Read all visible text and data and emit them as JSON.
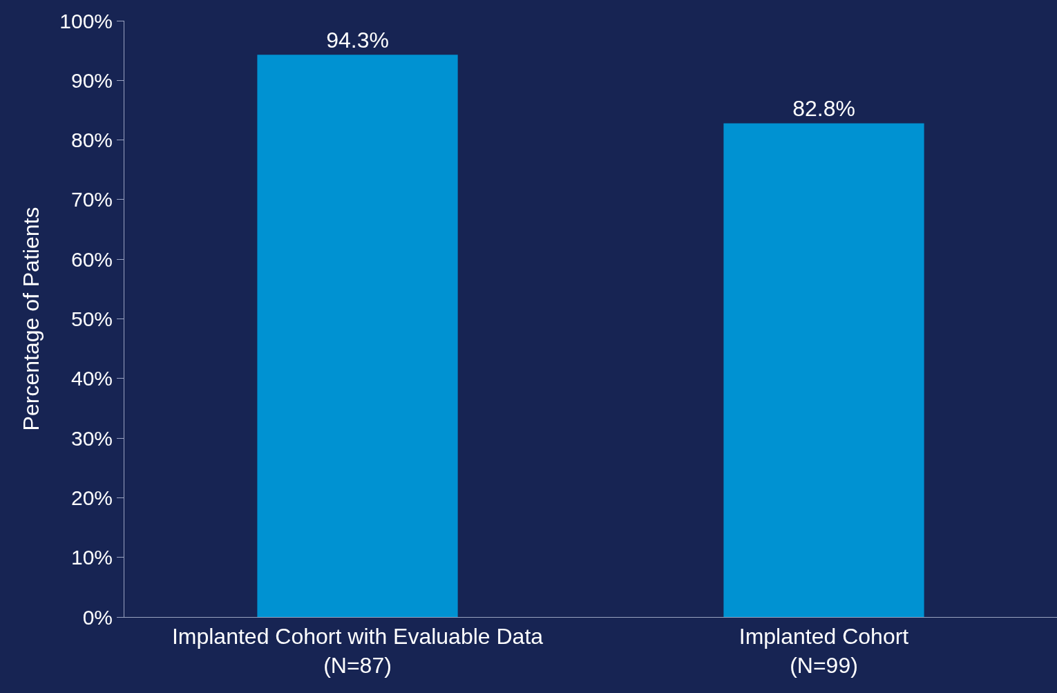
{
  "chart_data": {
    "type": "bar",
    "ylabel": "Percentage of Patients",
    "categories": [
      "Implanted Cohort with Evaluable Data\n(N=87)",
      "Implanted Cohort\n(N=99)"
    ],
    "values": [
      94.3,
      82.8
    ],
    "value_labels": [
      "94.3%",
      "82.8%"
    ],
    "color": "#0092d2",
    "ylim": [
      0,
      100
    ],
    "yticks": [
      {
        "value": 0,
        "label": "0%"
      },
      {
        "value": 10,
        "label": "10%"
      },
      {
        "value": 20,
        "label": "20%"
      },
      {
        "value": 30,
        "label": "30%"
      },
      {
        "value": 40,
        "label": "40%"
      },
      {
        "value": 50,
        "label": "50%"
      },
      {
        "value": 60,
        "label": "60%"
      },
      {
        "value": 70,
        "label": "70%"
      },
      {
        "value": 80,
        "label": "80%"
      },
      {
        "value": 90,
        "label": "90%"
      },
      {
        "value": 100,
        "label": "100%"
      }
    ],
    "grid": false
  }
}
